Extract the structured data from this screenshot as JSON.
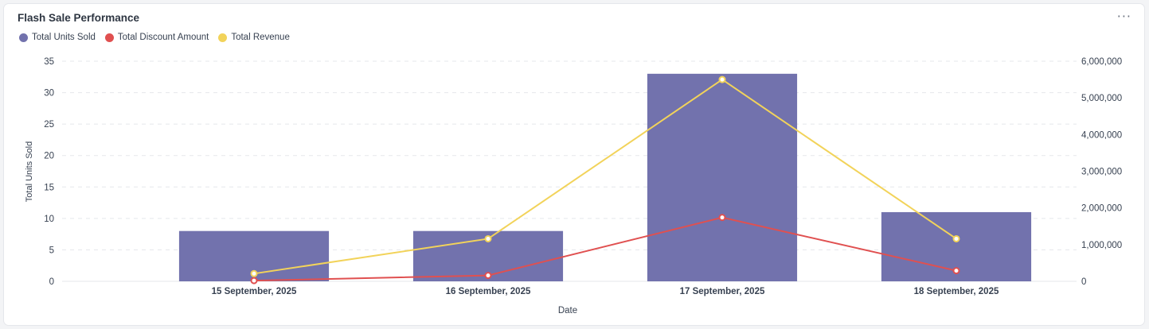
{
  "header": {
    "title": "Flash Sale Performance",
    "menu_label": "···"
  },
  "colors": {
    "units": "#7272ad",
    "discount": "#e05050",
    "revenue": "#f2d35a"
  },
  "chart_data": {
    "type": "bar",
    "title": "Flash Sale Performance",
    "xlabel": "Date",
    "ylabel": "Total Units Sold",
    "categories": [
      "15 September, 2025",
      "16 September, 2025",
      "17 September, 2025",
      "18 September, 2025"
    ],
    "series": [
      {
        "name": "Total Units Sold",
        "type": "bar",
        "axis": "left",
        "color": "#7272ad",
        "values": [
          8,
          8,
          33,
          11
        ]
      },
      {
        "name": "Total Discount Amount",
        "type": "line",
        "axis": "right",
        "color": "#e05050",
        "values": [
          20000,
          160000,
          1740000,
          290000
        ]
      },
      {
        "name": "Total Revenue",
        "type": "line",
        "axis": "right",
        "color": "#f2d35a",
        "values": [
          210000,
          1160000,
          5500000,
          1160000
        ]
      }
    ],
    "ylim": [
      0,
      35
    ],
    "yticks": [
      "0",
      "5",
      "10",
      "15",
      "20",
      "25",
      "30",
      "35"
    ],
    "y2lim": [
      0,
      6000000
    ],
    "y2ticks": [
      "0",
      "1,000,000",
      "2,000,000",
      "3,000,000",
      "4,000,000",
      "5,000,000",
      "6,000,000"
    ],
    "grid": true,
    "legend_position": "top-left"
  }
}
